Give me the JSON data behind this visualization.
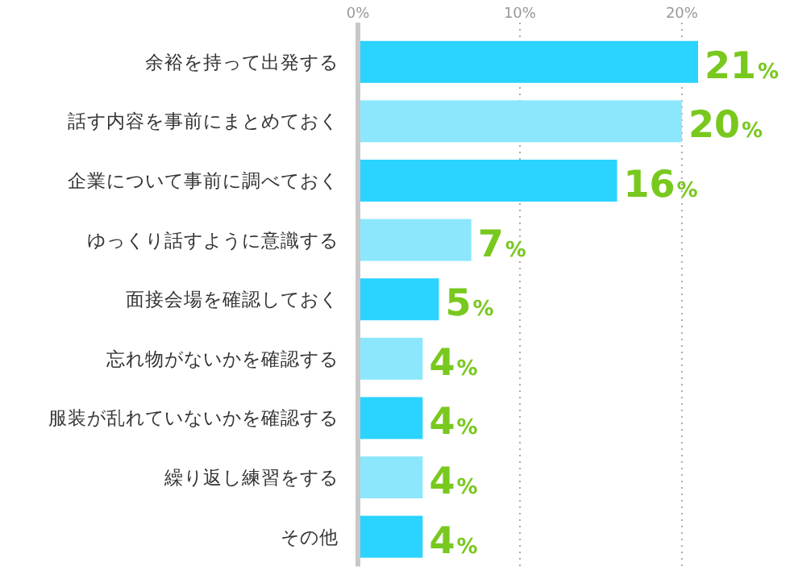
{
  "chart_data": {
    "type": "bar",
    "orientation": "horizontal",
    "categories": [
      "余裕を持って出発する",
      "話す内容を事前にまとめておく",
      "企業について事前に調べておく",
      "ゆっくり話すように意識する",
      "面接会場を確認しておく",
      "忘れ物がないかを確認する",
      "服装が乱れていないかを確認する",
      "繰り返し練習をする",
      "その他"
    ],
    "values": [
      21,
      20,
      16,
      7,
      5,
      4,
      4,
      4,
      4
    ],
    "value_labels": [
      "21%",
      "20%",
      "16%",
      "7%",
      "5%",
      "4%",
      "4%",
      "4%",
      "4%"
    ],
    "colors": [
      "#2bd3ff",
      "#8ce7fc",
      "#2bd3ff",
      "#8ce7fc",
      "#2bd3ff",
      "#8ce7fc",
      "#2bd3ff",
      "#8ce7fc",
      "#2bd3ff"
    ],
    "xlim": [
      0,
      21
    ],
    "xticks": [
      {
        "value": 0,
        "label": "0%"
      },
      {
        "value": 10,
        "label": "10%"
      },
      {
        "value": 20,
        "label": "20%"
      }
    ],
    "grid": "x"
  }
}
